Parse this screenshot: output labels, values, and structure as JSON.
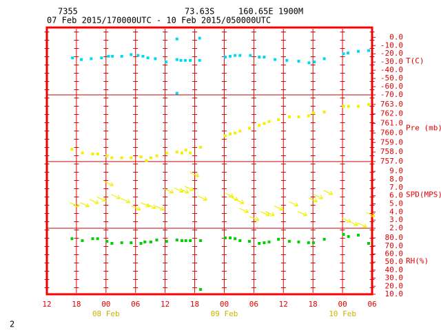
{
  "header": {
    "station": "7355",
    "lat": "73.63S",
    "lon": "160.65E",
    "elev": "1900M",
    "period": "07 Feb 2015/170000UTC - 10 Feb 2015/050000UTC"
  },
  "page_number": "2",
  "x_axis": {
    "xlim": [
      0,
      66
    ],
    "xticks": [
      {
        "value": 0,
        "label": "12"
      },
      {
        "value": 6,
        "label": "18"
      },
      {
        "value": 12,
        "label": "00"
      },
      {
        "value": 18,
        "label": "06"
      },
      {
        "value": 24,
        "label": "12"
      },
      {
        "value": 30,
        "label": "18"
      },
      {
        "value": 36,
        "label": "00"
      },
      {
        "value": 42,
        "label": "06"
      },
      {
        "value": 48,
        "label": "12"
      },
      {
        "value": 54,
        "label": "18"
      },
      {
        "value": 60,
        "label": "00"
      },
      {
        "value": 66,
        "label": "06"
      }
    ],
    "date_labels": [
      {
        "value": 12,
        "label": "08 Feb"
      },
      {
        "value": 36,
        "label": "09 Feb"
      },
      {
        "value": 60,
        "label": "10 Feb"
      }
    ]
  },
  "chart_data": [
    {
      "type": "scatter",
      "ylabel": "T(C)",
      "ylim": [
        -70,
        12
      ],
      "yticks": [
        {
          "value": 0,
          "label": "0.0"
        },
        {
          "value": -10,
          "label": "-10.0"
        },
        {
          "value": -20,
          "label": "-20.0"
        },
        {
          "value": -30,
          "label": "-30.0"
        },
        {
          "value": -40,
          "label": "-40.0"
        },
        {
          "value": -50,
          "label": "-50.0"
        },
        {
          "value": -60,
          "label": "-60.0"
        },
        {
          "value": -70,
          "label": "-70.0"
        }
      ],
      "color": "#00d8f0",
      "x": [
        5.2,
        7,
        9,
        11.1,
        12.5,
        13.3,
        15.2,
        17.1,
        18.5,
        19.5,
        20.5,
        22,
        24.2,
        26.4,
        26.4,
        26.4,
        27.2,
        28.1,
        29.1,
        31,
        31,
        36.2,
        37.2,
        38.2,
        39.2,
        41.3,
        43.1,
        44.1,
        46.3,
        48.7,
        51.1,
        53.2,
        54.3,
        56.3,
        60.2,
        61.1,
        63.2,
        65.3
      ],
      "values": [
        -25,
        -27,
        -26,
        -25,
        -23,
        -23,
        -23,
        -21,
        -22,
        -23,
        -25,
        -26,
        -30,
        -2,
        -27,
        -68,
        -28,
        -28,
        -28,
        -28,
        -1,
        -24,
        -23,
        -22,
        -22,
        -22,
        -24,
        -24,
        -27,
        -28,
        -29,
        -31,
        -30,
        -26,
        -20,
        -19,
        -17,
        -16
      ]
    },
    {
      "type": "scatter",
      "ylabel": "Pre (mb)",
      "ylim": [
        757,
        764
      ],
      "yticks": [
        {
          "value": 763,
          "label": "763.0"
        },
        {
          "value": 762,
          "label": "762.0"
        },
        {
          "value": 761,
          "label": "761.0"
        },
        {
          "value": 760,
          "label": "760.0"
        },
        {
          "value": 759,
          "label": "759.0"
        },
        {
          "value": 758,
          "label": "758.0"
        },
        {
          "value": 757,
          "label": "757.0"
        }
      ],
      "color": "#f0f000",
      "x": [
        5.1,
        7.2,
        9.3,
        10.3,
        12.2,
        13.2,
        15.2,
        17.1,
        19.1,
        20.2,
        21.1,
        22.3,
        24.3,
        26.4,
        27.4,
        28.2,
        29.1,
        31.2,
        36.2,
        37.2,
        38.2,
        39.2,
        41.1,
        43.1,
        44.1,
        45.1,
        47,
        49.2,
        51.1,
        53.1,
        54.1,
        56.3,
        60.2,
        61.2,
        63.2,
        65.3
      ],
      "values": [
        758.3,
        757.9,
        757.8,
        757.8,
        757.6,
        757.4,
        757.4,
        757.4,
        757.5,
        757.1,
        757.4,
        757.6,
        757.9,
        758.0,
        757.9,
        758.2,
        757.9,
        758.5,
        759.7,
        759.9,
        760.0,
        760.2,
        760.5,
        760.8,
        761.0,
        761.2,
        761.4,
        761.7,
        761.7,
        761.8,
        762.1,
        762.2,
        762.8,
        762.8,
        762.8,
        763.0
      ]
    },
    {
      "type": "arrow",
      "ylabel": "SPD(MPS)",
      "ylim": [
        2,
        10.2
      ],
      "yticks": [
        {
          "value": 9,
          "label": "9.0"
        },
        {
          "value": 8,
          "label": "8.0"
        },
        {
          "value": 7,
          "label": "7.0"
        },
        {
          "value": 6,
          "label": "6.0"
        },
        {
          "value": 5,
          "label": "5.0"
        },
        {
          "value": 4,
          "label": "4.0"
        },
        {
          "value": 3,
          "label": "3.0"
        },
        {
          "value": 2,
          "label": "2.0"
        }
      ],
      "color": "#f0f000",
      "x": [
        5.5,
        7.6,
        9.5,
        11,
        12.5,
        13.9,
        15.9,
        18,
        19.9,
        21.1,
        22.8,
        24.7,
        26.7,
        27.8,
        28.8,
        29.9,
        31.5,
        36.9,
        37.8,
        39,
        39.9,
        42,
        44.2,
        45.2,
        47,
        50,
        51.8,
        53.9,
        55,
        57,
        60.7,
        62.1,
        63.9,
        65.6
      ],
      "values": [
        4.9,
        4.9,
        5.3,
        5.6,
        7.5,
        5.9,
        5.4,
        4.5,
        4.9,
        4.7,
        4.5,
        6.6,
        6.7,
        6.6,
        6.9,
        8.6,
        5.7,
        6.1,
        5.7,
        5.3,
        4.2,
        3.2,
        3.8,
        3.8,
        4.5,
        5.0,
        3.8,
        5.5,
        5.9,
        6.4,
        3.0,
        2.6,
        2.4,
        3.7
      ]
    },
    {
      "type": "scatter",
      "ylabel": "RH(%)",
      "ylim": [
        10,
        92
      ],
      "yticks": [
        {
          "value": 80,
          "label": "80.0"
        },
        {
          "value": 70,
          "label": "70.0"
        },
        {
          "value": 60,
          "label": "60.0"
        },
        {
          "value": 50,
          "label": "50.0"
        },
        {
          "value": 40,
          "label": "40.0"
        },
        {
          "value": 30,
          "label": "30.0"
        },
        {
          "value": 20,
          "label": "20.0"
        },
        {
          "value": 10,
          "label": "10.0"
        }
      ],
      "color": "#00d000",
      "x": [
        5.1,
        7.2,
        9.3,
        10.3,
        12.2,
        13.2,
        15.2,
        17.1,
        19.1,
        19.9,
        21.1,
        22.3,
        24.3,
        26.4,
        27.4,
        28.2,
        29.1,
        31.2,
        31.2,
        36.2,
        37.2,
        38.2,
        39.2,
        41.1,
        43.1,
        44.1,
        45.1,
        47,
        49.2,
        51.1,
        53.1,
        54.1,
        56.3,
        60.2,
        61.2,
        63.2,
        65.3
      ],
      "values": [
        79,
        76.6,
        79,
        79,
        75.7,
        73.2,
        74,
        74,
        73.2,
        75,
        75,
        77.4,
        75.7,
        77.4,
        76.6,
        76.6,
        76.6,
        76.6,
        16,
        80,
        80,
        79,
        76.6,
        75.7,
        73.2,
        74,
        75,
        78.3,
        75.7,
        75,
        74,
        74,
        78.3,
        84.3,
        81.7,
        83.4,
        73.2
      ]
    }
  ]
}
